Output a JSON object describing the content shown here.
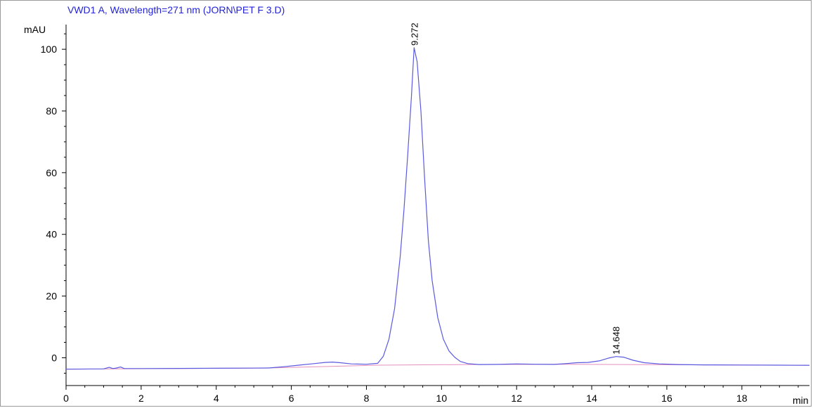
{
  "chart_data": {
    "type": "line",
    "title": "VWD1 A, Wavelength=271 nm (JORN\\PET F 3.D)",
    "ylabel": "mAU",
    "xlabel": "min",
    "xlim": [
      0,
      19.8
    ],
    "ylim": [
      -9,
      108
    ],
    "xticks": [
      0,
      2,
      4,
      6,
      8,
      10,
      12,
      14,
      16,
      18
    ],
    "yticks": [
      0,
      20,
      40,
      60,
      80,
      100
    ],
    "grid": false,
    "colors": {
      "trace": "#5a5ae0",
      "baseline": "#e48fbf",
      "title": "#2323d9",
      "axis": "#000000"
    },
    "series": [
      {
        "x": [
          0,
          1.0,
          1.15,
          1.25,
          1.35,
          1.45,
          1.55,
          2,
          3,
          4,
          5,
          5.4,
          5.8,
          6.2,
          6.6,
          6.9,
          7.1,
          7.3,
          7.6,
          8,
          8.3,
          8.45,
          8.6,
          8.75,
          8.9,
          9.0,
          9.1,
          9.2,
          9.27,
          9.35,
          9.45,
          9.55,
          9.65,
          9.75,
          9.9,
          10.05,
          10.2,
          10.35,
          10.5,
          10.7,
          11,
          11.5,
          12,
          12.5,
          13,
          13.3,
          13.6,
          13.9,
          14.2,
          14.45,
          14.65,
          14.85,
          15.1,
          15.4,
          15.8,
          16.3,
          17,
          18,
          19,
          19.8
        ],
        "y": [
          -3.7,
          -3.6,
          -3.1,
          -3.5,
          -3.3,
          -3.0,
          -3.5,
          -3.5,
          -3.45,
          -3.4,
          -3.35,
          -3.3,
          -2.9,
          -2.4,
          -1.9,
          -1.5,
          -1.4,
          -1.6,
          -2.0,
          -2.1,
          -1.8,
          0.5,
          6,
          16,
          33,
          48,
          66,
          85,
          100.5,
          96,
          80,
          58,
          38,
          25,
          13,
          6,
          2.2,
          0.2,
          -1.2,
          -1.9,
          -2.2,
          -2.15,
          -2.0,
          -2.1,
          -2.15,
          -1.9,
          -1.6,
          -1.5,
          -1.0,
          -0.1,
          0.4,
          0.2,
          -0.8,
          -1.6,
          -2.0,
          -2.2,
          -2.3,
          -2.35,
          -2.4,
          -2.45
        ]
      }
    ],
    "baseline": {
      "x": [
        0,
        5.4,
        8.3,
        10.7,
        13.3,
        19.8
      ],
      "y": [
        -3.7,
        -3.3,
        -2.4,
        -2.2,
        -2.1,
        -2.45
      ]
    },
    "peaks": [
      {
        "label": "9.272",
        "x": 9.272,
        "y": 100.5
      },
      {
        "label": "14.648",
        "x": 14.648,
        "y": 0.4
      }
    ]
  }
}
